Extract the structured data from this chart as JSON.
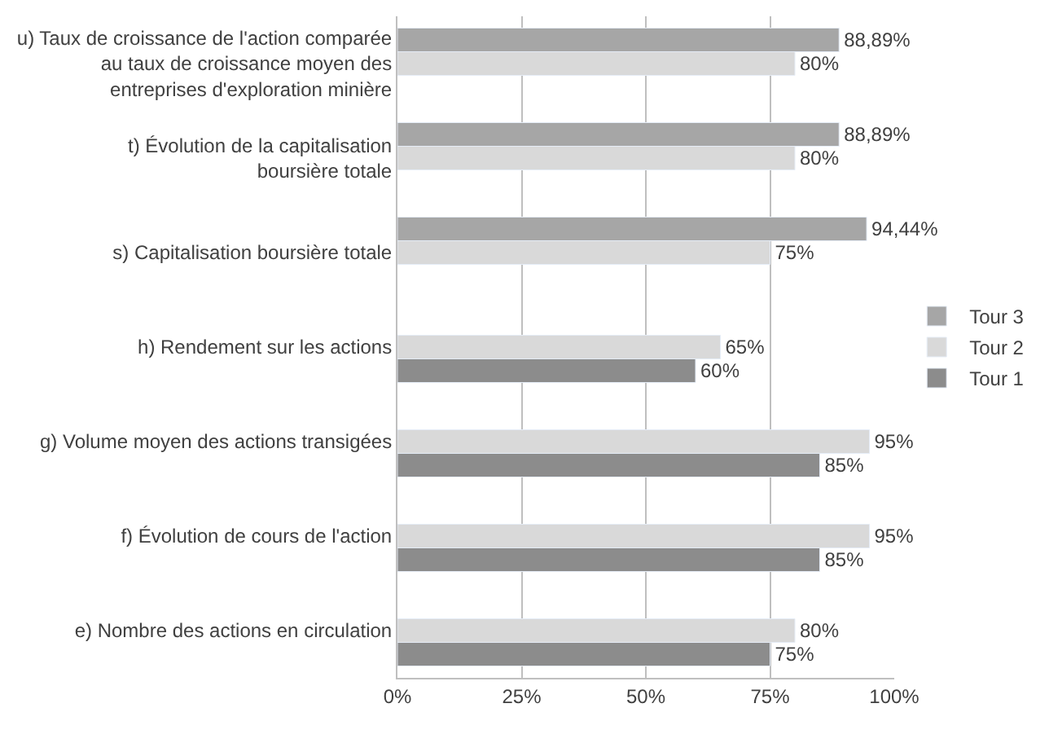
{
  "chart_data": {
    "type": "bar",
    "orientation": "horizontal",
    "categories": [
      "u) Taux de croissance de l'action comparée au taux de croissance moyen des entreprises d'exploration minière",
      "t) Évolution de la capitalisation boursière totale",
      "s) Capitalisation boursière totale",
      "h) Rendement sur les actions",
      "g) Volume moyen des actions transigées",
      "f) Évolution de cours de l'action",
      "e) Nombre des actions en circulation"
    ],
    "series": [
      {
        "name": "Tour 3",
        "color": "#a6a6a6",
        "values": [
          88.89,
          88.89,
          94.44,
          null,
          null,
          null,
          null
        ],
        "value_labels": [
          "88,89%",
          "88,89%",
          "94,44%",
          null,
          null,
          null,
          null
        ]
      },
      {
        "name": "Tour 2",
        "color": "#d9d9d9",
        "values": [
          80,
          80,
          75,
          65,
          95,
          95,
          80
        ],
        "value_labels": [
          "80%",
          "80%",
          "75%",
          "65%",
          "95%",
          "95%",
          "80%"
        ]
      },
      {
        "name": "Tour 1",
        "color": "#8c8c8c",
        "values": [
          null,
          null,
          null,
          60,
          85,
          85,
          75
        ],
        "value_labels": [
          null,
          null,
          null,
          "60%",
          "85%",
          "85%",
          "75%"
        ]
      }
    ],
    "xlim": [
      0,
      100
    ],
    "xticks": [
      {
        "value": 0,
        "label": "0%"
      },
      {
        "value": 25,
        "label": "25%"
      },
      {
        "value": 50,
        "label": "50%"
      },
      {
        "value": 75,
        "label": "75%"
      },
      {
        "value": 100,
        "label": "100%"
      }
    ],
    "grid": "x",
    "legend": "right"
  }
}
